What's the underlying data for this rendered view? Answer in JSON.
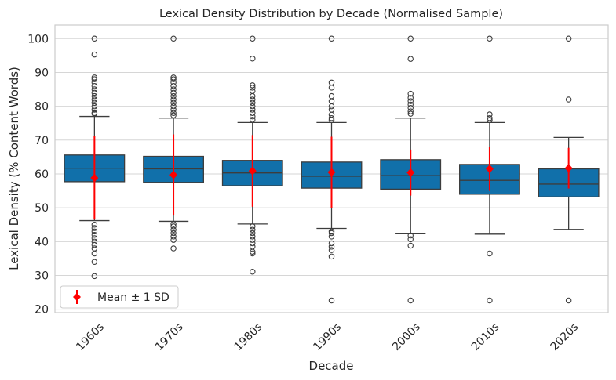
{
  "chart_data": {
    "type": "box",
    "title": "Lexical Density Distribution by Decade (Normalised Sample)",
    "xlabel": "Decade",
    "ylabel": "Lexical Density (% Content Words)",
    "ylim": [
      19,
      104
    ],
    "yticks": [
      20,
      30,
      40,
      50,
      60,
      70,
      80,
      90,
      100
    ],
    "grid": true,
    "legend": {
      "position": "lower-left",
      "label": "Mean ± 1 SD"
    },
    "colors": {
      "box": "#1170aa",
      "mean": "#ff0000",
      "edge": "#3d3d3d",
      "grid": "#d6d6d6",
      "spine": "#cccccc"
    },
    "categories": [
      "1960s",
      "1970s",
      "1980s",
      "1990s",
      "2000s",
      "2010s",
      "2020s"
    ],
    "boxes": [
      {
        "q1": 57.7,
        "median": 61.7,
        "q3": 65.6,
        "whisker_low": 46.2,
        "whisker_high": 77.0,
        "mean": 58.8,
        "sd": 12.3,
        "outliers": [
          100,
          95.3,
          88.5,
          88.0,
          87.0,
          86.0,
          85.0,
          84.0,
          83.0,
          82.0,
          81.0,
          80.0,
          79.0,
          78.0,
          77.8,
          45.0,
          44.0,
          43.0,
          42.0,
          41.0,
          40.0,
          39.0,
          38.0,
          36.5,
          34.0,
          29.8
        ]
      },
      {
        "q1": 57.5,
        "median": 61.5,
        "q3": 65.2,
        "whisker_low": 46.0,
        "whisker_high": 76.5,
        "mean": 59.7,
        "sd": 12.0,
        "outliers": [
          100,
          88.5,
          88.0,
          87.0,
          86.0,
          85.0,
          84.0,
          83.0,
          82.0,
          81.0,
          80.0,
          79.0,
          78.0,
          77.3,
          45.2,
          44.5,
          43.5,
          42.5,
          41.5,
          40.5,
          38.0
        ]
      },
      {
        "q1": 56.5,
        "median": 60.3,
        "q3": 64.0,
        "whisker_low": 45.2,
        "whisker_high": 75.2,
        "mean": 60.9,
        "sd": 10.6,
        "outliers": [
          100,
          94.1,
          86.2,
          85.5,
          84.5,
          83.0,
          82.0,
          81.0,
          80.0,
          79.0,
          78.0,
          77.0,
          76.0,
          44.5,
          43.5,
          42.5,
          41.5,
          40.5,
          39.5,
          38.5,
          37.0,
          36.5,
          31.1
        ]
      },
      {
        "q1": 55.8,
        "median": 59.3,
        "q3": 63.5,
        "whisker_low": 43.9,
        "whisker_high": 75.2,
        "mean": 60.5,
        "sd": 10.5,
        "outliers": [
          100,
          87.0,
          85.5,
          83.0,
          81.5,
          80.0,
          79.0,
          77.5,
          76.5,
          75.9,
          43.0,
          42.5,
          41.5,
          39.5,
          38.5,
          37.5,
          35.6,
          22.6
        ]
      },
      {
        "q1": 55.5,
        "median": 59.5,
        "q3": 64.2,
        "whisker_low": 42.3,
        "whisker_high": 76.5,
        "mean": 60.4,
        "sd": 6.8,
        "outliers": [
          100,
          94.0,
          83.7,
          82.5,
          81.5,
          80.5,
          79.5,
          78.5,
          77.8,
          41.8,
          40.7,
          38.8,
          22.6
        ]
      },
      {
        "q1": 54.0,
        "median": 58.1,
        "q3": 62.8,
        "whisker_low": 42.2,
        "whisker_high": 75.2,
        "mean": 61.5,
        "sd": 6.5,
        "outliers": [
          100,
          77.6,
          76.5,
          75.9,
          36.5,
          22.6
        ]
      },
      {
        "q1": 53.2,
        "median": 57.0,
        "q3": 61.5,
        "whisker_low": 43.6,
        "whisker_high": 70.8,
        "mean": 61.7,
        "sd": 6.0,
        "outliers": [
          100,
          82.0,
          22.6
        ]
      }
    ]
  }
}
